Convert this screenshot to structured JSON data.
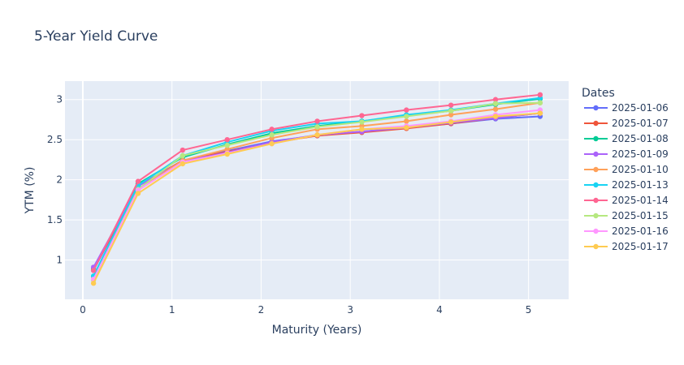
{
  "chart_data": {
    "type": "line",
    "title": "5-Year Yield Curve",
    "xlabel": "Maturity (Years)",
    "ylabel": "YTM (%)",
    "xlim": [
      -0.2,
      5.45
    ],
    "ylim": [
      0.51,
      3.23
    ],
    "xticks": [
      0,
      1,
      2,
      3,
      4,
      5
    ],
    "yticks": [
      1,
      1.5,
      2,
      2.5,
      3
    ],
    "grid": true,
    "legend_title": "Dates",
    "legend_position": "right",
    "x": [
      0.12,
      0.62,
      1.12,
      1.62,
      2.12,
      2.63,
      3.13,
      3.63,
      4.13,
      4.63,
      5.13
    ],
    "series": [
      {
        "name": "2025-01-06",
        "color": "#636efa",
        "values": [
          0.87,
          1.92,
          2.24,
          2.36,
          2.48,
          2.55,
          2.6,
          2.65,
          2.7,
          2.76,
          2.79
        ]
      },
      {
        "name": "2025-01-07",
        "color": "#EF553B",
        "values": [
          0.88,
          1.92,
          2.24,
          2.35,
          2.46,
          2.55,
          2.59,
          2.64,
          2.7,
          2.77,
          2.83
        ]
      },
      {
        "name": "2025-01-08",
        "color": "#00cc96",
        "values": [
          0.89,
          1.95,
          2.28,
          2.44,
          2.58,
          2.67,
          2.73,
          2.8,
          2.86,
          2.94,
          3.01
        ]
      },
      {
        "name": "2025-01-09",
        "color": "#ab63fa",
        "values": [
          0.91,
          1.92,
          2.23,
          2.34,
          2.47,
          2.56,
          2.6,
          2.65,
          2.71,
          2.77,
          2.83
        ]
      },
      {
        "name": "2025-01-10",
        "color": "#FFA15A",
        "values": [
          0.79,
          1.88,
          2.24,
          2.38,
          2.52,
          2.63,
          2.67,
          2.73,
          2.81,
          2.88,
          2.96
        ]
      },
      {
        "name": "2025-01-13",
        "color": "#19d3f3",
        "values": [
          0.8,
          1.93,
          2.3,
          2.47,
          2.61,
          2.7,
          2.73,
          2.81,
          2.87,
          2.95,
          3.02
        ]
      },
      {
        "name": "2025-01-14",
        "color": "#FF6692",
        "values": [
          0.87,
          1.98,
          2.37,
          2.5,
          2.63,
          2.73,
          2.8,
          2.87,
          2.93,
          3.0,
          3.06
        ]
      },
      {
        "name": "2025-01-15",
        "color": "#B6E880",
        "values": [
          0.75,
          1.88,
          2.3,
          2.43,
          2.56,
          2.66,
          2.72,
          2.79,
          2.86,
          2.95,
          2.96
        ]
      },
      {
        "name": "2025-01-16",
        "color": "#FF97FF",
        "values": [
          0.76,
          1.87,
          2.22,
          2.33,
          2.45,
          2.56,
          2.63,
          2.67,
          2.73,
          2.81,
          2.87
        ]
      },
      {
        "name": "2025-01-17",
        "color": "#FECB52",
        "values": [
          0.71,
          1.83,
          2.2,
          2.32,
          2.45,
          2.56,
          2.63,
          2.65,
          2.72,
          2.79,
          2.83
        ]
      }
    ]
  }
}
